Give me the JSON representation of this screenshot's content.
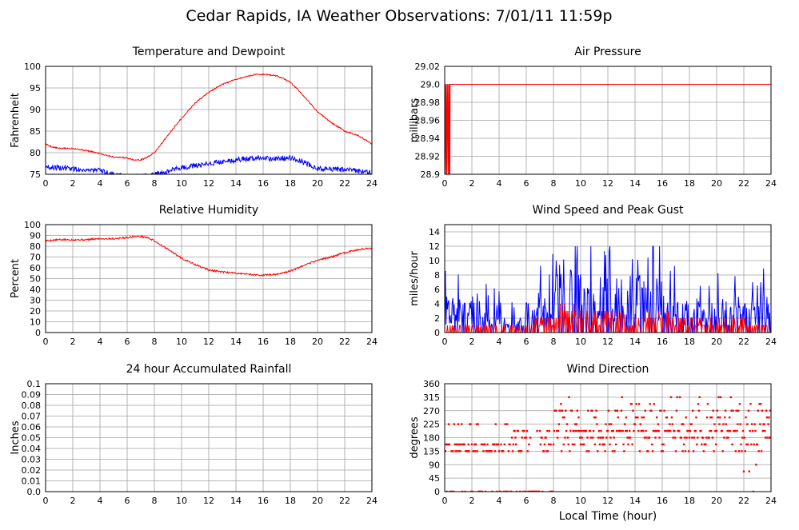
{
  "page": {
    "title": "Cedar Rapids, IA Weather Observations: 7/01/11 11:59p",
    "xlabel": "Local Time (hour)"
  },
  "colors": {
    "red": "#ff0000",
    "blue": "#0000ff",
    "grid": "#a0a0a0",
    "axis": "#000000"
  },
  "chart_data": [
    {
      "id": "temperature",
      "type": "line",
      "title": "Temperature and Dewpoint",
      "ylabel": "Fahrenheit",
      "xlim": [
        0,
        24
      ],
      "xticks": [
        0,
        2,
        4,
        6,
        8,
        10,
        12,
        14,
        16,
        18,
        20,
        22,
        24
      ],
      "ylim": [
        75,
        100
      ],
      "yticks": [
        75,
        80,
        85,
        90,
        95,
        100
      ],
      "series": [
        {
          "color": "#ff0000",
          "noise": 0.15,
          "x": [
            0,
            0.5,
            1,
            2,
            3,
            4,
            5,
            6,
            6.5,
            7,
            7.5,
            8,
            8.5,
            9,
            10,
            11,
            12,
            13,
            14,
            15,
            15.5,
            16,
            16.5,
            17,
            17.5,
            18,
            18.5,
            19,
            20,
            21,
            22,
            23,
            24
          ],
          "y": [
            82,
            81.3,
            81,
            81,
            80.5,
            79.8,
            79,
            78.8,
            78.3,
            78.3,
            79,
            80,
            82,
            84,
            88,
            91.5,
            94,
            95.8,
            97,
            97.8,
            98.2,
            98.1,
            98,
            97.8,
            97.2,
            96.3,
            94.8,
            93,
            89.5,
            87,
            85,
            84,
            82
          ]
        },
        {
          "color": "#0000ff",
          "noise": 0.6,
          "x": [
            0,
            1,
            2,
            3,
            4,
            5,
            6,
            6.5,
            7,
            8,
            9,
            10,
            11,
            12,
            13,
            14,
            15,
            16,
            16.5,
            17,
            18,
            19,
            20,
            21,
            22,
            23,
            24
          ],
          "y": [
            76.7,
            76.5,
            76.3,
            76,
            75.8,
            75,
            74.5,
            74.5,
            74.6,
            75,
            75.7,
            76.5,
            77,
            77.5,
            78,
            78.3,
            78.7,
            78.9,
            78.5,
            78.7,
            78.8,
            77.8,
            76.3,
            76.2,
            76,
            75.8,
            75.3
          ]
        }
      ]
    },
    {
      "id": "pressure",
      "type": "line",
      "title": "Air Pressure",
      "ylabel": "millibars",
      "xlim": [
        0,
        24
      ],
      "xticks": [
        0,
        2,
        4,
        6,
        8,
        10,
        12,
        14,
        16,
        18,
        20,
        22,
        24
      ],
      "ylim": [
        28.9,
        29.02
      ],
      "yticks": [
        28.9,
        28.92,
        28.94,
        28.96,
        28.98,
        29.0,
        29.02
      ],
      "ytick_labels": [
        "28.9",
        "28.92",
        "28.94",
        "28.96",
        "28.98",
        "29.0",
        "29.02"
      ],
      "series": [
        {
          "color": "#ff0000",
          "noise": 0,
          "x": [
            0,
            0.05,
            0.08,
            0.12,
            0.15,
            0.2,
            0.25,
            0.28,
            0.32,
            0.35,
            0.38,
            0.4,
            24
          ],
          "y": [
            28.9,
            29.0,
            28.9,
            29.0,
            28.9,
            29.0,
            28.9,
            29.0,
            28.9,
            29.0,
            28.9,
            29.0,
            29.0
          ]
        }
      ]
    },
    {
      "id": "humidity",
      "type": "line",
      "title": "Relative Humidity",
      "ylabel": "Percent",
      "xlim": [
        0,
        24
      ],
      "xticks": [
        0,
        2,
        4,
        6,
        8,
        10,
        12,
        14,
        16,
        18,
        20,
        22,
        24
      ],
      "ylim": [
        0,
        100
      ],
      "yticks": [
        0,
        10,
        20,
        30,
        40,
        50,
        60,
        70,
        80,
        90,
        100
      ],
      "series": [
        {
          "color": "#ff0000",
          "noise": 0.8,
          "x": [
            0,
            1,
            2,
            3,
            4,
            5,
            6,
            6.5,
            7,
            7.5,
            8,
            9,
            10,
            11,
            12,
            13,
            14,
            15,
            16,
            17,
            18,
            19,
            20,
            21,
            22,
            23,
            24
          ],
          "y": [
            85,
            86,
            86,
            86,
            87,
            87,
            88,
            89,
            89,
            88,
            85,
            77,
            69,
            63,
            58,
            56,
            55,
            54,
            53,
            54,
            57,
            62,
            67,
            70,
            74,
            77,
            78
          ]
        }
      ]
    },
    {
      "id": "wind",
      "type": "line",
      "title": "Wind Speed and Peak Gust",
      "ylabel": "miles/hour",
      "xlim": [
        0,
        24
      ],
      "xticks": [
        0,
        2,
        4,
        6,
        8,
        10,
        12,
        14,
        16,
        18,
        20,
        22,
        24
      ],
      "ylim": [
        0,
        15
      ],
      "yticks": [
        0,
        2,
        4,
        6,
        8,
        10,
        12,
        14
      ],
      "series": [
        {
          "color": "#0000ff",
          "style": "gust",
          "seed": 7,
          "step": 0.05,
          "x": [
            0,
            2,
            4,
            5.5,
            6,
            8,
            8.5,
            10,
            12,
            14,
            16,
            17,
            18,
            20,
            22,
            24
          ],
          "y": [
            3,
            3,
            1.5,
            1,
            3,
            4,
            6,
            6,
            5,
            5,
            5,
            3,
            3,
            3,
            3,
            3
          ]
        },
        {
          "color": "#ff0000",
          "style": "sustained",
          "seed": 11,
          "step": 0.05,
          "x": [
            0,
            5,
            6,
            8,
            8.5,
            10,
            12,
            16,
            17,
            24
          ],
          "y": [
            1,
            0.5,
            1,
            1.5,
            2.5,
            2.5,
            2,
            2,
            1.5,
            1
          ]
        }
      ]
    },
    {
      "id": "rain",
      "type": "line",
      "title": "24 hour Accumulated Rainfall",
      "ylabel": "Inches",
      "xlim": [
        0,
        24
      ],
      "xticks": [
        0,
        2,
        4,
        6,
        8,
        10,
        12,
        14,
        16,
        18,
        20,
        22,
        24
      ],
      "ylim": [
        0,
        0.1
      ],
      "yticks": [
        0,
        0.01,
        0.02,
        0.03,
        0.04,
        0.05,
        0.06,
        0.07,
        0.08,
        0.09,
        0.1
      ],
      "ytick_labels": [
        "0.0",
        "0.01",
        "0.02",
        "0.03",
        "0.04",
        "0.05",
        "0.06",
        "0.07",
        "0.08",
        "0.09",
        "0.1"
      ],
      "series": [
        {
          "color": "#ff0000",
          "noise": 0,
          "x": [
            0,
            24
          ],
          "y": [
            0,
            0
          ]
        }
      ]
    },
    {
      "id": "direction",
      "type": "scatter",
      "title": "Wind Direction",
      "ylabel": "degrees",
      "xlim": [
        0,
        24
      ],
      "xticks": [
        0,
        2,
        4,
        6,
        8,
        10,
        12,
        14,
        16,
        18,
        20,
        22,
        24
      ],
      "ylim": [
        0,
        360
      ],
      "yticks": [
        0,
        45,
        90,
        135,
        180,
        225,
        270,
        315,
        360
      ],
      "series": [
        {
          "color": "#ff0000",
          "style": "direction",
          "seed": 3
        }
      ]
    }
  ]
}
